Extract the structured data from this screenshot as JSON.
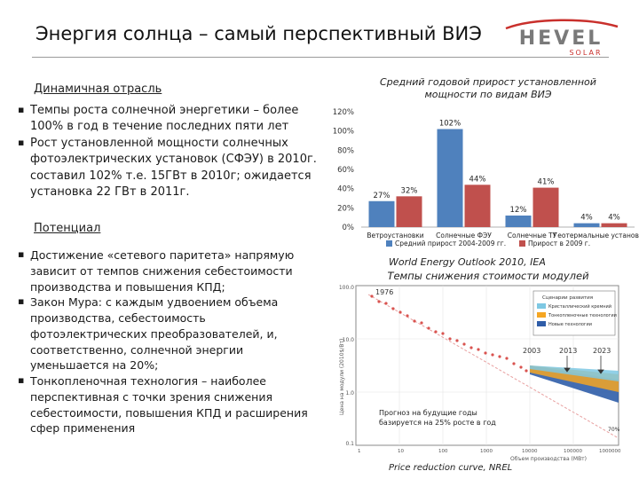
{
  "slide": {
    "title": "Энергия солнца – самый перспективный ВИЭ"
  },
  "logo": {
    "name": "HEVEL",
    "sub": "SOLAR"
  },
  "left": {
    "section1_heading": "Динамичная отрасль",
    "section1_bullets": [
      "Темпы роста солнечной энергетики – более 100% в год в течение последних пяти лет",
      "Рост установленной мощности солнечных фотоэлектрических установок (СФЭУ) в 2010г. составил 102% т.е. 15ГВт в 2010г; ожидается установка 22 ГВт в 2011г."
    ],
    "section2_heading": "Потенциал",
    "section2_bullets": [
      "Достижение «сетевого паритета» напрямую зависит от темпов снижения себестоимости производства и повышения КПД;",
      "Закон Мура: с каждым удвоением объема производства, себестоимость фотоэлектрических преобразователей, и, соответственно, солнечной энергии уменьшается на 20%;",
      "Тонкопленочная технология – наиболее перспективная с точки зрения снижения себестоимости, повышения КПД и расширения сфер применения"
    ]
  },
  "bar_chart": {
    "caption_line1": "Средний годовой прирост установленной",
    "caption_line2": "мощности по видам ВИЭ",
    "source": "World Energy Outlook 2010, IEA"
  },
  "curve_chart": {
    "caption": "Темпы снижения стоимости модулей",
    "source": "Price reduction curve, NREL",
    "label_1976": "1976",
    "label_2003": "2003",
    "label_2013": "2013",
    "label_2023": "2023",
    "label_70": "70%",
    "note_line1": "Прогноз на будущие годы",
    "note_line2": "базируется на 25% росте в год",
    "y_axis_title": "Цена на модули (2010$/Вт)",
    "x_axis_title": "Объем производства (МВт)",
    "legend_title": "Сценарии развития",
    "legend_items": [
      {
        "label": "Кристаллический кремний",
        "color": "#7ec8e3"
      },
      {
        "label": "Тонкопленочные технологии",
        "color": "#f5a623"
      },
      {
        "label": "Новые технологии",
        "color": "#2f5da8"
      }
    ],
    "y_ticks": [
      "100.0",
      "10.0",
      "1.0",
      "0.1"
    ],
    "x_ticks": [
      "1",
      "10",
      "100",
      "1000",
      "10000",
      "100000",
      "1000000"
    ]
  },
  "chart_data": {
    "type": "bar",
    "title": "Средний годовой прирост установленной мощности по видам ВИЭ",
    "categories": [
      "Ветроустановки",
      "Солнечные ФЭУ",
      "Солнечные ТУ",
      "Геотермальные установки"
    ],
    "series": [
      {
        "name": "Средний прирост 2004-2009 гг.",
        "values": [
          27,
          102,
          12,
          4
        ],
        "labels": [
          "27%",
          "102%",
          "12%",
          "4%"
        ],
        "color": "#4f81bd"
      },
      {
        "name": "Прирост в 2009 г.",
        "values": [
          32,
          44,
          41,
          4
        ],
        "labels": [
          "32%",
          "44%",
          "41%",
          "4%"
        ],
        "color": "#c0504d"
      }
    ],
    "y_ticks": [
      "0%",
      "20%",
      "40%",
      "60%",
      "80%",
      "100%",
      "120%"
    ],
    "ylim": [
      0,
      120
    ],
    "grid": false,
    "legend_position": "bottom"
  }
}
